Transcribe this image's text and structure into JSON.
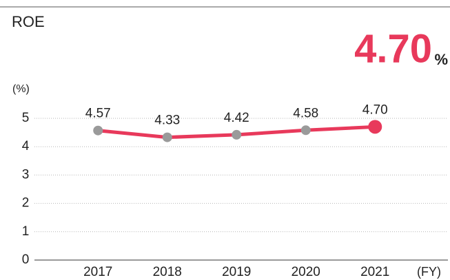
{
  "chart_data": {
    "type": "line",
    "title": "ROE",
    "headline": {
      "value": "4.70",
      "unit": "%"
    },
    "y_unit": "(%)",
    "x_unit": "(FY)",
    "categories": [
      "2017",
      "2018",
      "2019",
      "2020",
      "2021"
    ],
    "values": [
      4.57,
      4.33,
      4.42,
      4.58,
      4.7
    ],
    "value_labels": [
      "4.57",
      "4.33",
      "4.42",
      "4.58",
      "4.70"
    ],
    "color": "#e8395b",
    "point_color": "#9a9a9a",
    "highlight_index": 4,
    "ylim": [
      0,
      5
    ],
    "yticks": [
      0,
      1,
      2,
      3,
      4,
      5
    ],
    "grid": true
  }
}
